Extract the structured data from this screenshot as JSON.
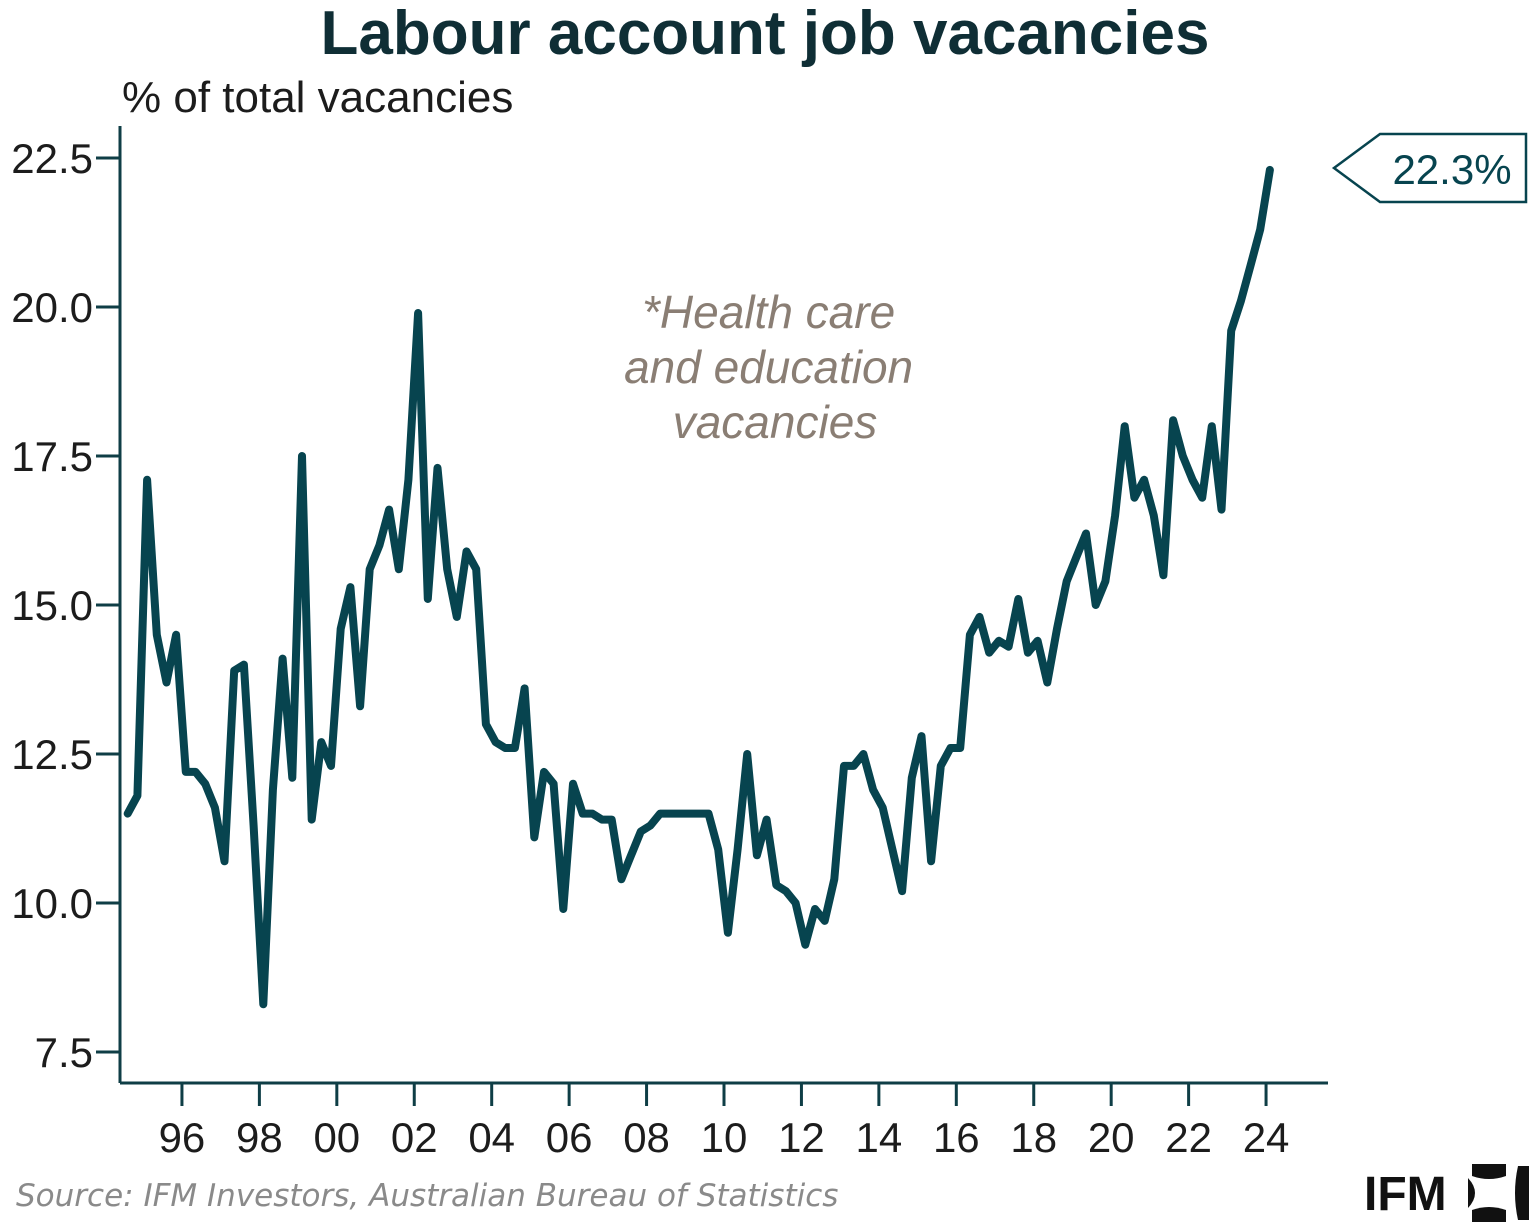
{
  "chart_data": {
    "type": "line",
    "title": "Labour account job vacancies",
    "ylabel": "% of total vacancies",
    "xlabel": "",
    "ylim": [
      7.5,
      22.5
    ],
    "yticks": [
      "7.5",
      "10.0",
      "12.5",
      "15.0",
      "17.5",
      "20.0",
      "22.5"
    ],
    "xticks": [
      "96",
      "98",
      "00",
      "02",
      "04",
      "06",
      "08",
      "10",
      "12",
      "14",
      "16",
      "18",
      "20",
      "22",
      "24"
    ],
    "xtick_years": [
      1996,
      1998,
      2000,
      2002,
      2004,
      2006,
      2008,
      2010,
      2012,
      2014,
      2016,
      2018,
      2020,
      2022,
      2024
    ],
    "xrange": [
      1994.4,
      2025.6
    ],
    "grid": false,
    "series": [
      {
        "name": "*Health care and education vacancies",
        "x_start": 1994.6,
        "x_step": 0.25,
        "values": [
          11.5,
          11.8,
          17.1,
          14.5,
          13.7,
          14.5,
          12.2,
          12.2,
          12.0,
          11.6,
          10.7,
          13.9,
          14.0,
          11.3,
          8.3,
          11.9,
          14.1,
          12.1,
          17.5,
          11.4,
          12.7,
          12.3,
          14.6,
          15.3,
          13.3,
          15.6,
          16.0,
          16.6,
          15.6,
          17.1,
          19.9,
          15.1,
          17.3,
          15.6,
          14.8,
          15.9,
          15.6,
          13.0,
          12.7,
          12.6,
          12.6,
          13.6,
          11.1,
          12.2,
          12.0,
          9.9,
          12.0,
          11.5,
          11.5,
          11.4,
          11.4,
          10.4,
          10.8,
          11.2,
          11.3,
          11.5,
          11.5,
          11.5,
          11.5,
          11.5,
          11.5,
          10.9,
          9.5,
          10.9,
          12.5,
          10.8,
          11.4,
          10.3,
          10.2,
          10.0,
          9.3,
          9.9,
          9.7,
          10.4,
          12.3,
          12.3,
          12.5,
          11.9,
          11.6,
          10.9,
          10.2,
          12.1,
          12.8,
          10.7,
          12.3,
          12.6,
          12.6,
          14.5,
          14.8,
          14.2,
          14.4,
          14.3,
          15.1,
          14.2,
          14.4,
          13.7,
          14.6,
          15.4,
          15.8,
          16.2,
          15.0,
          15.4,
          16.5,
          18.0,
          16.8,
          17.1,
          16.5,
          15.5,
          18.1,
          17.5,
          17.1,
          16.8,
          18.0,
          16.6,
          19.6,
          20.1,
          20.7,
          21.3,
          22.3
        ]
      }
    ],
    "annotations": [
      {
        "text": "22.3%",
        "type": "callout",
        "value": 22.3
      }
    ],
    "annotation_text_lines": [
      "*Health care",
      "and education",
      "vacancies"
    ]
  },
  "source": "Source: IFM Investors, Australian Bureau of Statistics",
  "logo": {
    "text": "IFM",
    "icon": "ifm-logo-icon"
  },
  "colors": {
    "line": "#07444f",
    "title": "#0f2e35",
    "annotation": "#8a7e74"
  }
}
